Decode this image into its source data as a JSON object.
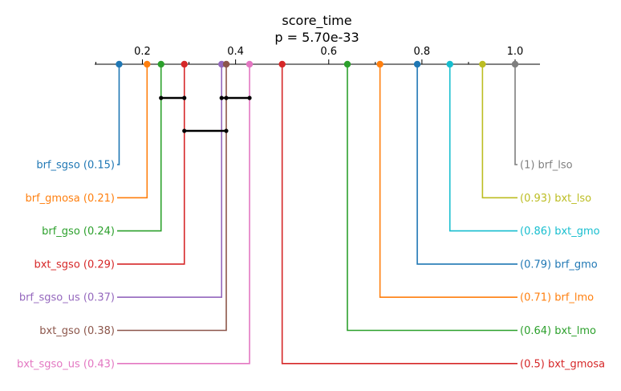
{
  "chart_data": {
    "type": "critical-difference",
    "title": "score_time",
    "subtitle": "p = 5.70e-33",
    "axis": {
      "range": [
        0.1,
        1.05
      ],
      "ticks": [
        0.2,
        0.4,
        0.6,
        0.8,
        1.0
      ],
      "tick_labels": [
        "0.2",
        "0.4",
        "0.6",
        "0.8",
        "1.0"
      ]
    },
    "left_items": [
      {
        "name": "brf_sgso",
        "value": 0.15,
        "label": "brf_sgso (0.15)",
        "color": "#1f77b4"
      },
      {
        "name": "brf_gmosa",
        "value": 0.21,
        "label": "brf_gmosa (0.21)",
        "color": "#ff7f0e"
      },
      {
        "name": "brf_gso",
        "value": 0.24,
        "label": "brf_gso (0.24)",
        "color": "#2ca02c"
      },
      {
        "name": "bxt_sgso",
        "value": 0.29,
        "label": "bxt_sgso (0.29)",
        "color": "#d62728"
      },
      {
        "name": "brf_sgso_us",
        "value": 0.37,
        "label": "brf_sgso_us (0.37)",
        "color": "#9467bd"
      },
      {
        "name": "bxt_gso",
        "value": 0.38,
        "label": "bxt_gso (0.38)",
        "color": "#8c564b"
      },
      {
        "name": "bxt_sgso_us",
        "value": 0.43,
        "label": "bxt_sgso_us (0.43)",
        "color": "#e377c2"
      }
    ],
    "right_items": [
      {
        "name": "brf_lso",
        "value": 1.0,
        "label": "(1) brf_lso",
        "color": "#7f7f7f"
      },
      {
        "name": "bxt_lso",
        "value": 0.93,
        "label": "(0.93) bxt_lso",
        "color": "#bcbd22"
      },
      {
        "name": "bxt_gmo",
        "value": 0.86,
        "label": "(0.86) bxt_gmo",
        "color": "#17becf"
      },
      {
        "name": "brf_gmo",
        "value": 0.79,
        "label": "(0.79) brf_gmo",
        "color": "#1f77b4"
      },
      {
        "name": "brf_lmo",
        "value": 0.71,
        "label": "(0.71) brf_lmo",
        "color": "#ff7f0e"
      },
      {
        "name": "bxt_lmo",
        "value": 0.64,
        "label": "(0.64) bxt_lmo",
        "color": "#2ca02c"
      },
      {
        "name": "bxt_gmosa",
        "value": 0.5,
        "label": "(0.5) bxt_gmosa",
        "color": "#d62728"
      }
    ],
    "cliques": [
      {
        "from": 0.24,
        "to": 0.29,
        "members": [
          "0.24",
          "0.29"
        ]
      },
      {
        "from": 0.37,
        "to": 0.43,
        "members": [
          "0.37",
          "0.38",
          "0.43"
        ]
      },
      {
        "from": 0.29,
        "to": 0.38,
        "members": [
          "0.29",
          "0.38"
        ]
      }
    ]
  }
}
